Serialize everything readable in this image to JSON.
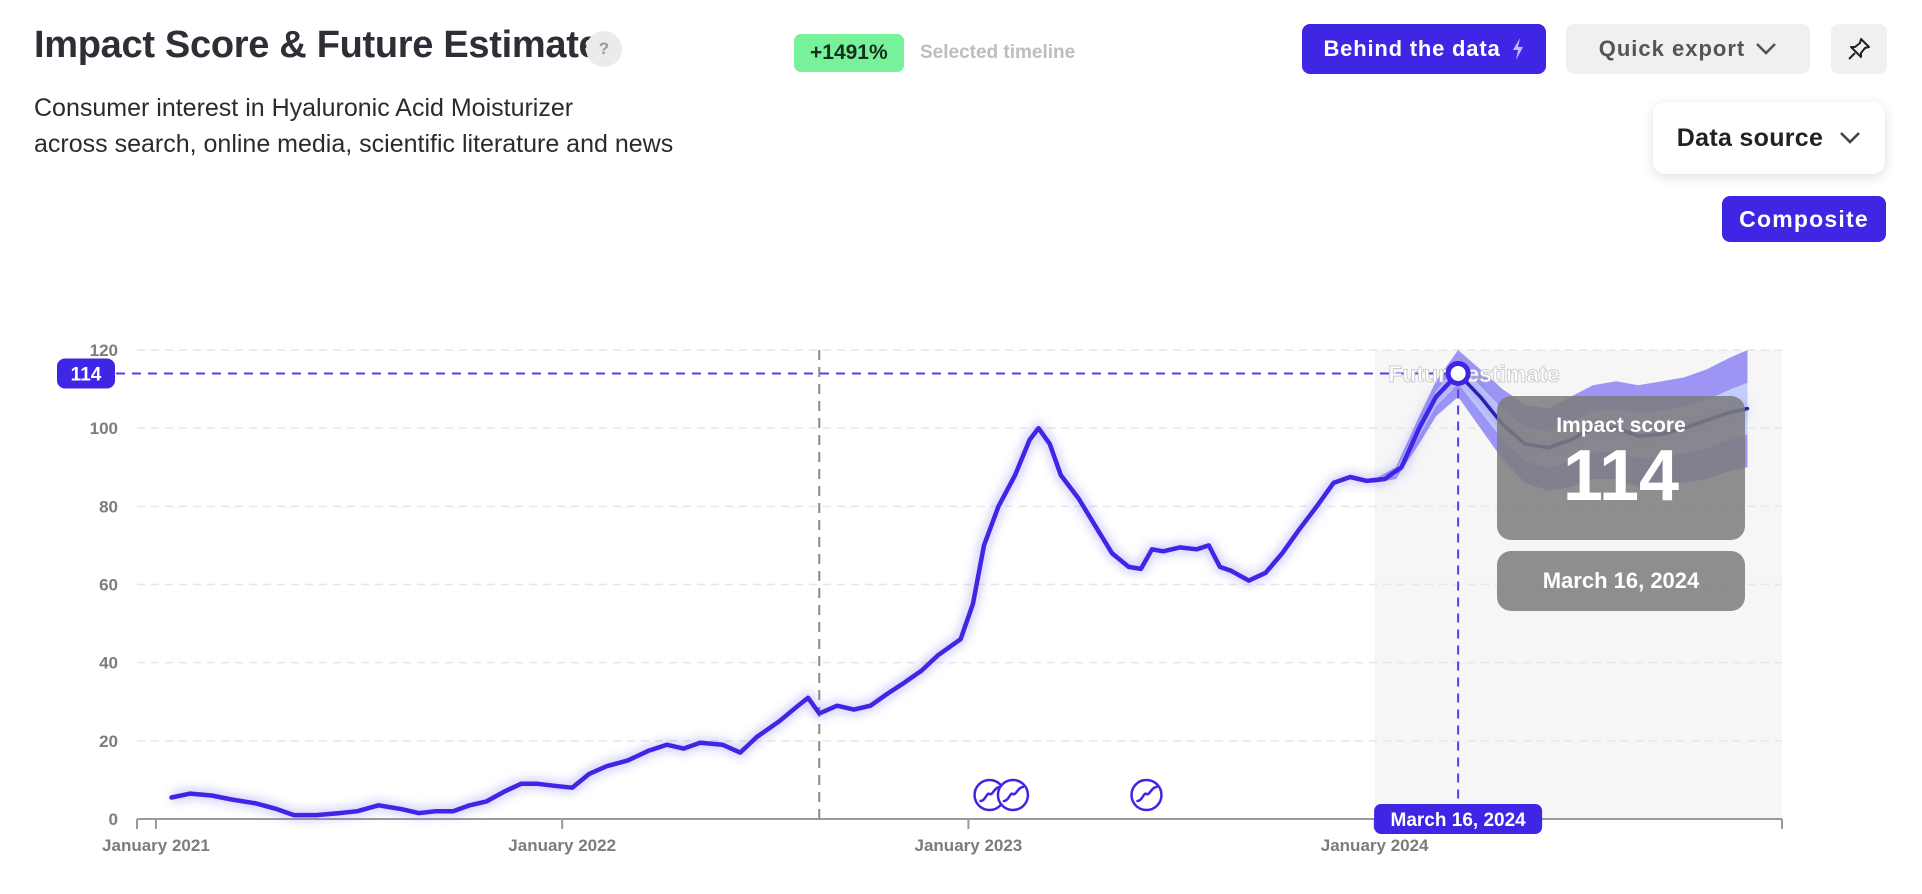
{
  "header": {
    "title": "Impact Score & Future Estimate",
    "help_glyph": "?",
    "subtitle_line1": "Consumer interest in Hyaluronic Acid Moisturizer",
    "subtitle_line2": "across search, online media, scientific literature and news",
    "badge": "+1491%",
    "badge_color": "#77f19a",
    "badge_label": "Selected timeline"
  },
  "toolbar": {
    "behind_label": "Behind the data",
    "behind_icon": "lightning-icon",
    "export_label": "Quick export",
    "export_icon": "chevron-down-icon",
    "pin_icon": "pin-icon",
    "data_source_label": "Data source",
    "composite_label": "Composite",
    "accent": "#3f26e4"
  },
  "chart_data": {
    "type": "line",
    "title": "",
    "xlabel": "",
    "ylabel": "",
    "ylim": [
      0,
      120
    ],
    "yticks": [
      0,
      20,
      40,
      60,
      80,
      100,
      120
    ],
    "xlim": [
      "2020-12-15",
      "2025-01-01"
    ],
    "xticks": [
      {
        "date": "2021-01-01",
        "label": "January 2021"
      },
      {
        "date": "2022-01-01",
        "label": "January 2022"
      },
      {
        "date": "2023-01-01",
        "label": "January 2023"
      },
      {
        "date": "2024-01-01",
        "label": "January 2024"
      }
    ],
    "grid": true,
    "line_color": "#3f26e4",
    "series": [
      {
        "values": [
          [
            "2021-01-15",
            5.5
          ],
          [
            "2021-02-01",
            6.5
          ],
          [
            "2021-02-20",
            6
          ],
          [
            "2021-03-10",
            5
          ],
          [
            "2021-04-01",
            4
          ],
          [
            "2021-04-20",
            2.5
          ],
          [
            "2021-05-05",
            1
          ],
          [
            "2021-05-25",
            1
          ],
          [
            "2021-06-15",
            1.5
          ],
          [
            "2021-07-01",
            2
          ],
          [
            "2021-07-20",
            3.5
          ],
          [
            "2021-08-10",
            2.5
          ],
          [
            "2021-08-25",
            1.5
          ],
          [
            "2021-09-10",
            2
          ],
          [
            "2021-09-25",
            2
          ],
          [
            "2021-10-10",
            3.5
          ],
          [
            "2021-10-25",
            4.5
          ],
          [
            "2021-11-10",
            7
          ],
          [
            "2021-11-25",
            9
          ],
          [
            "2021-12-10",
            9
          ],
          [
            "2021-12-25",
            8.5
          ],
          [
            "2022-01-10",
            8
          ],
          [
            "2022-01-25",
            11.5
          ],
          [
            "2022-02-10",
            13.5
          ],
          [
            "2022-03-01",
            15
          ],
          [
            "2022-03-20",
            17.5
          ],
          [
            "2022-04-05",
            19
          ],
          [
            "2022-04-20",
            18
          ],
          [
            "2022-05-05",
            19.5
          ],
          [
            "2022-05-25",
            19
          ],
          [
            "2022-06-10",
            17
          ],
          [
            "2022-06-25",
            21
          ],
          [
            "2022-07-15",
            25
          ],
          [
            "2022-08-01",
            29
          ],
          [
            "2022-08-10",
            31
          ],
          [
            "2022-08-20",
            27
          ],
          [
            "2022-09-05",
            29
          ],
          [
            "2022-09-20",
            28
          ],
          [
            "2022-10-05",
            29
          ],
          [
            "2022-10-20",
            32
          ],
          [
            "2022-11-05",
            35
          ],
          [
            "2022-11-20",
            38
          ],
          [
            "2022-12-05",
            42
          ],
          [
            "2022-12-25",
            46
          ],
          [
            "2023-01-05",
            55
          ],
          [
            "2023-01-15",
            70
          ],
          [
            "2023-01-28",
            80
          ],
          [
            "2023-02-12",
            88
          ],
          [
            "2023-02-25",
            97
          ],
          [
            "2023-03-05",
            100
          ],
          [
            "2023-03-15",
            96
          ],
          [
            "2023-03-25",
            88
          ],
          [
            "2023-04-10",
            82
          ],
          [
            "2023-04-25",
            75
          ],
          [
            "2023-05-10",
            68
          ],
          [
            "2023-05-25",
            64.5
          ],
          [
            "2023-06-05",
            64
          ],
          [
            "2023-06-15",
            69
          ],
          [
            "2023-06-25",
            68.5
          ],
          [
            "2023-07-10",
            69.5
          ],
          [
            "2023-07-25",
            69
          ],
          [
            "2023-08-05",
            70
          ],
          [
            "2023-08-15",
            64.5
          ],
          [
            "2023-08-25",
            63.5
          ],
          [
            "2023-09-10",
            61
          ],
          [
            "2023-09-25",
            63
          ],
          [
            "2023-10-10",
            68
          ],
          [
            "2023-10-25",
            74
          ],
          [
            "2023-11-10",
            80
          ],
          [
            "2023-11-25",
            86
          ],
          [
            "2023-12-10",
            87.5
          ],
          [
            "2023-12-25",
            86.5
          ],
          [
            "2024-01-10",
            87
          ],
          [
            "2024-01-25",
            90
          ],
          [
            "2024-02-10",
            100
          ],
          [
            "2024-02-25",
            108
          ],
          [
            "2024-03-16",
            114
          ]
        ]
      },
      {
        "values": [
          [
            "2024-03-16",
            114
          ],
          [
            "2024-04-05",
            108
          ],
          [
            "2024-04-25",
            101
          ],
          [
            "2024-05-15",
            96
          ],
          [
            "2024-06-05",
            95
          ],
          [
            "2024-06-25",
            97
          ],
          [
            "2024-07-15",
            100
          ],
          [
            "2024-08-05",
            100
          ],
          [
            "2024-08-25",
            98
          ],
          [
            "2024-09-15",
            98.5
          ],
          [
            "2024-10-05",
            100
          ],
          [
            "2024-10-25",
            102
          ],
          [
            "2024-11-15",
            104
          ],
          [
            "2024-12-01",
            105
          ]
        ]
      }
    ],
    "forecast_band": [
      [
        "2024-01-01",
        86,
        87
      ],
      [
        "2024-01-20",
        87,
        90
      ],
      [
        "2024-02-10",
        96,
        103
      ],
      [
        "2024-02-25",
        103,
        112
      ],
      [
        "2024-03-16",
        108,
        120
      ],
      [
        "2024-04-05",
        100,
        115
      ],
      [
        "2024-04-25",
        92,
        110
      ],
      [
        "2024-05-15",
        86,
        106
      ],
      [
        "2024-06-05",
        84,
        105
      ],
      [
        "2024-06-25",
        85,
        108
      ],
      [
        "2024-07-15",
        87,
        111
      ],
      [
        "2024-08-05",
        87,
        112
      ],
      [
        "2024-08-25",
        85,
        111
      ],
      [
        "2024-09-15",
        85,
        112
      ],
      [
        "2024-10-05",
        86,
        113
      ],
      [
        "2024-10-25",
        87,
        115
      ],
      [
        "2024-11-15",
        89,
        118
      ],
      [
        "2024-12-01",
        90,
        120
      ]
    ],
    "forecast_label": "Future estimate",
    "forecast_start": "2024-01-01",
    "divider_date": "2022-08-20",
    "selected_point": {
      "date": "2024-03-16",
      "value": 114,
      "date_label": "March 16, 2024",
      "value_label": "114"
    },
    "event_markers": [
      "2023-01-20",
      "2023-02-10",
      "2023-06-10"
    ]
  },
  "tooltip": {
    "label": "Impact score",
    "value": "114",
    "date": "March 16, 2024"
  }
}
